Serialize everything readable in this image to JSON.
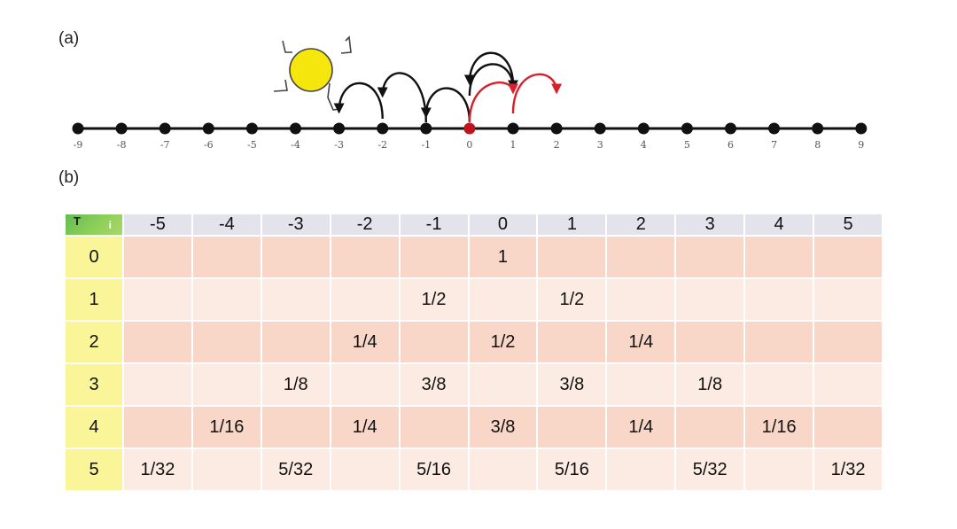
{
  "panels": {
    "a": "(a)",
    "b": "(b)"
  },
  "number_line": {
    "positions": [
      -9,
      -8,
      -7,
      -6,
      -5,
      -4,
      -3,
      -2,
      -1,
      0,
      1,
      2,
      3,
      4,
      5,
      6,
      7,
      8,
      9
    ],
    "highlight_position": 0,
    "black_hops": [
      [
        0,
        -1
      ],
      [
        -1,
        -2
      ],
      [
        -2,
        -3
      ],
      [
        0,
        1
      ],
      [
        1,
        0
      ]
    ],
    "red_hops": [
      [
        0,
        1
      ],
      [
        1,
        2
      ]
    ],
    "colors": {
      "line": "#111111",
      "point": "#111111",
      "origin": "#c0141c",
      "red_arrow": "#d9202a",
      "sun": "#f5e60e"
    }
  },
  "table": {
    "corner": {
      "row_axis": "T",
      "col_axis": "i"
    },
    "columns": [
      "-5",
      "-4",
      "-3",
      "-2",
      "-1",
      "0",
      "1",
      "2",
      "3",
      "4",
      "5"
    ],
    "rows": [
      {
        "t": "0",
        "cells": [
          "",
          "",
          "",
          "",
          "",
          "1",
          "",
          "",
          "",
          "",
          ""
        ]
      },
      {
        "t": "1",
        "cells": [
          "",
          "",
          "",
          "",
          "1/2",
          "",
          "1/2",
          "",
          "",
          "",
          ""
        ]
      },
      {
        "t": "2",
        "cells": [
          "",
          "",
          "",
          "1/4",
          "",
          "1/2",
          "",
          "1/4",
          "",
          "",
          ""
        ]
      },
      {
        "t": "3",
        "cells": [
          "",
          "",
          "1/8",
          "",
          "3/8",
          "",
          "3/8",
          "",
          "1/8",
          "",
          ""
        ]
      },
      {
        "t": "4",
        "cells": [
          "",
          "1/16",
          "",
          "1/4",
          "",
          "3/8",
          "",
          "1/4",
          "",
          "1/16",
          ""
        ]
      },
      {
        "t": "5",
        "cells": [
          "1/32",
          "",
          "5/32",
          "",
          "5/16",
          "",
          "5/16",
          "",
          "5/32",
          "",
          "1/32"
        ]
      }
    ],
    "colors": {
      "header": "#e3e3ec",
      "row_header": "#fbf59a",
      "corner": "#7cc858",
      "row_dark": "#f8d7c8",
      "row_light": "#fcebe3"
    }
  }
}
